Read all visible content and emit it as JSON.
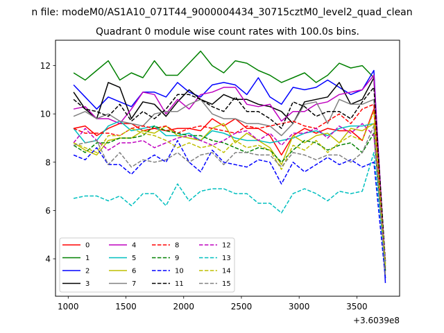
{
  "figure": {
    "suptitle": "n file: modeM0/AS1A10_071T44_9000004434_30715cztM0_level2_quad_clean"
  },
  "chart_data": {
    "type": "line",
    "title": "Quadrant 0 module wise count rates with 100.0s bins.",
    "xlabel": "",
    "ylabel": "",
    "x_offset_label": "+3.6039e8",
    "xlim": [
      890,
      3870
    ],
    "ylim": [
      2.45,
      13.05
    ],
    "xticks": [
      1000,
      1500,
      2000,
      2500,
      3000,
      3500
    ],
    "yticks": [
      4,
      6,
      8,
      10,
      12
    ],
    "grid": false,
    "legend_position": "lower-left",
    "legend_columns": 4,
    "x": [
      1047,
      1147,
      1247,
      1347,
      1447,
      1547,
      1647,
      1747,
      1847,
      1947,
      2047,
      2147,
      2247,
      2347,
      2447,
      2547,
      2647,
      2747,
      2847,
      2947,
      3047,
      3147,
      3247,
      3347,
      3447,
      3547,
      3647,
      3747
    ],
    "series": [
      {
        "name": "0",
        "color": "#ff0000",
        "dash": "solid",
        "values": [
          9.4,
          9.5,
          9.1,
          9.4,
          9.6,
          9.6,
          9.3,
          9.4,
          9.3,
          9.4,
          9.4,
          9.3,
          9.8,
          9.5,
          9.8,
          9.4,
          9.4,
          9.1,
          8.3,
          9.1,
          9.4,
          9.2,
          9.4,
          9.3,
          9.3,
          8.9,
          10.2,
          3.8
        ]
      },
      {
        "name": "1",
        "color": "#008000",
        "dash": "solid",
        "values": [
          11.7,
          11.4,
          11.8,
          12.2,
          11.4,
          11.7,
          11.5,
          12.2,
          11.6,
          11.6,
          12.1,
          12.6,
          12.0,
          11.7,
          12.2,
          12.1,
          11.8,
          11.6,
          11.3,
          11.5,
          11.7,
          11.3,
          11.6,
          12.1,
          11.9,
          12.0,
          11.5,
          3.2
        ]
      },
      {
        "name": "2",
        "color": "#0000ff",
        "dash": "solid",
        "values": [
          11.2,
          10.7,
          10.2,
          10.7,
          10.5,
          10.3,
          10.9,
          10.9,
          10.7,
          11.3,
          10.9,
          10.7,
          11.2,
          11.3,
          11.2,
          10.8,
          11.5,
          10.7,
          10.4,
          11.1,
          11.0,
          11.1,
          11.4,
          11.1,
          10.8,
          11.0,
          11.8,
          3.0
        ]
      },
      {
        "name": "3",
        "color": "#000000",
        "dash": "solid",
        "values": [
          10.9,
          10.2,
          9.8,
          11.3,
          11.1,
          9.8,
          10.5,
          10.4,
          9.9,
          10.5,
          11.0,
          10.6,
          10.4,
          10.8,
          10.6,
          10.6,
          10.4,
          10.3,
          10.1,
          9.6,
          10.5,
          10.6,
          10.7,
          11.3,
          10.4,
          10.6,
          11.5,
          3.5
        ]
      },
      {
        "name": "4",
        "color": "#bf00bf",
        "dash": "solid",
        "values": [
          10.2,
          10.3,
          9.8,
          9.8,
          9.6,
          10.2,
          10.9,
          10.8,
          10.0,
          10.6,
          10.2,
          10.8,
          10.9,
          11.1,
          11.1,
          10.4,
          10.3,
          10.4,
          9.7,
          10.1,
          10.1,
          10.4,
          10.5,
          10.8,
          10.9,
          11.0,
          11.6,
          3.6
        ]
      },
      {
        "name": "5",
        "color": "#00bfbf",
        "dash": "solid",
        "values": [
          9.4,
          8.8,
          8.9,
          9.5,
          9.7,
          9.3,
          9.4,
          9.5,
          9.1,
          9.1,
          9.2,
          8.9,
          9.3,
          9.2,
          9.0,
          8.9,
          8.9,
          8.8,
          8.9,
          9.0,
          9.2,
          9.3,
          9.1,
          9.4,
          9.5,
          9.5,
          9.6,
          3.8
        ]
      },
      {
        "name": "6",
        "color": "#bfbf00",
        "dash": "solid",
        "values": [
          8.8,
          8.5,
          8.3,
          8.9,
          9.0,
          9.0,
          9.3,
          9.2,
          9.5,
          9.1,
          9.0,
          8.9,
          9.4,
          9.6,
          8.8,
          9.2,
          8.9,
          8.6,
          7.9,
          9.1,
          8.8,
          9.1,
          9.2,
          8.8,
          9.4,
          9.3,
          9.6,
          3.7
        ]
      },
      {
        "name": "7",
        "color": "#808080",
        "dash": "solid",
        "values": [
          9.9,
          10.1,
          9.8,
          10.0,
          9.7,
          9.6,
          9.5,
          10.0,
          10.1,
          10.1,
          10.4,
          10.6,
          10.0,
          9.8,
          9.8,
          9.6,
          9.6,
          9.5,
          9.1,
          9.6,
          10.4,
          10.5,
          9.6,
          10.6,
          10.4,
          10.4,
          10.6,
          3.3
        ]
      },
      {
        "name": "8",
        "color": "#ff0000",
        "dash": "dashed",
        "values": [
          9.4,
          9.2,
          9.2,
          9.2,
          9.1,
          9.4,
          9.5,
          9.4,
          9.5,
          9.2,
          9.4,
          9.5,
          9.4,
          9.3,
          9.2,
          9.5,
          9.4,
          9.5,
          9.6,
          9.7,
          9.5,
          9.4,
          9.7,
          10.0,
          9.6,
          10.2,
          10.4,
          3.6
        ]
      },
      {
        "name": "9",
        "color": "#008000",
        "dash": "dashed",
        "values": [
          8.7,
          8.4,
          8.8,
          8.8,
          9.0,
          9.0,
          9.1,
          9.5,
          9.3,
          9.2,
          9.1,
          9.1,
          8.9,
          8.8,
          8.6,
          8.4,
          8.6,
          8.5,
          8.0,
          8.5,
          8.9,
          8.8,
          8.5,
          8.7,
          8.8,
          8.4,
          9.2,
          3.5
        ]
      },
      {
        "name": "10",
        "color": "#0000ff",
        "dash": "dashed",
        "values": [
          8.3,
          8.1,
          8.6,
          7.9,
          7.9,
          7.5,
          8.0,
          8.3,
          8.0,
          8.9,
          8.0,
          7.6,
          8.5,
          8.0,
          7.9,
          7.8,
          8.1,
          8.0,
          7.1,
          8.0,
          7.6,
          7.9,
          8.2,
          7.9,
          8.1,
          7.8,
          8.0,
          3.2
        ]
      },
      {
        "name": "11",
        "color": "#000000",
        "dash": "dashed",
        "values": [
          10.6,
          10.2,
          10.1,
          9.9,
          10.4,
          9.7,
          10.1,
          9.8,
          10.2,
          10.8,
          10.8,
          10.6,
          10.3,
          10.1,
          10.7,
          10.1,
          10.1,
          9.8,
          9.4,
          10.5,
          10.3,
          9.9,
          10.1,
          10.1,
          9.8,
          10.5,
          11.1,
          3.9
        ]
      },
      {
        "name": "12",
        "color": "#bf00bf",
        "dash": "dashed",
        "values": [
          8.8,
          9.4,
          8.9,
          8.5,
          8.8,
          8.8,
          8.9,
          8.6,
          8.8,
          9.0,
          9.1,
          8.9,
          8.7,
          8.9,
          9.2,
          9.3,
          8.9,
          9.2,
          8.7,
          9.2,
          9.2,
          9.4,
          9.0,
          9.5,
          9.2,
          9.6,
          9.1,
          3.9
        ]
      },
      {
        "name": "13",
        "color": "#00bfbf",
        "dash": "dashed",
        "values": [
          6.5,
          6.6,
          6.6,
          6.4,
          6.6,
          6.2,
          6.7,
          6.7,
          6.2,
          7.1,
          6.4,
          6.8,
          6.9,
          6.9,
          6.7,
          6.7,
          6.3,
          6.3,
          5.9,
          6.7,
          6.9,
          6.7,
          6.4,
          6.8,
          6.7,
          6.8,
          8.4,
          3.7
        ]
      },
      {
        "name": "14",
        "color": "#bfbf00",
        "dash": "dashed",
        "values": [
          8.8,
          8.6,
          8.4,
          9.1,
          9.1,
          9.4,
          9.2,
          9.1,
          8.9,
          8.6,
          8.8,
          8.6,
          8.7,
          8.4,
          8.9,
          8.6,
          8.7,
          8.5,
          7.7,
          8.7,
          8.5,
          8.9,
          8.4,
          8.8,
          9.1,
          8.9,
          10.1,
          3.7
        ]
      },
      {
        "name": "15",
        "color": "#808080",
        "dash": "dashed",
        "values": [
          8.7,
          8.8,
          8.9,
          7.9,
          8.4,
          7.8,
          8.1,
          8.0,
          8.1,
          8.4,
          8.0,
          8.3,
          8.4,
          7.9,
          8.4,
          8.4,
          8.3,
          8.3,
          7.8,
          8.4,
          8.3,
          8.1,
          8.3,
          8.3,
          8.0,
          8.4,
          9.5,
          3.3
        ]
      }
    ]
  }
}
